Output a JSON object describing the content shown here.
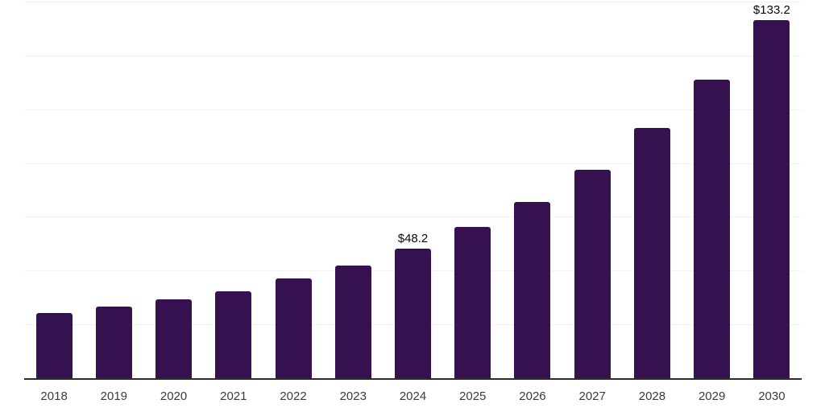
{
  "chart_data": {
    "type": "bar",
    "title": "",
    "xlabel": "",
    "ylabel": "",
    "categories": [
      "2018",
      "2019",
      "2020",
      "2021",
      "2022",
      "2023",
      "2024",
      "2025",
      "2026",
      "2027",
      "2028",
      "2029",
      "2030"
    ],
    "values": [
      24.1,
      26.5,
      29.2,
      32.2,
      37.0,
      42.0,
      48.2,
      56.3,
      65.6,
      77.5,
      93.0,
      110.9,
      133.2
    ],
    "data_labels": {
      "2024": "$48.2",
      "2030": "$133.2"
    },
    "ylim": [
      0,
      140
    ],
    "gridline_step": 20,
    "grid": true,
    "y_axis_tick_labels_visible": false,
    "legend": null,
    "colors": {
      "bar": "#35124F",
      "gridline": "#f2f2f2",
      "axis_line": "#2b2b2b",
      "tick_label": "#3b3b3b",
      "data_label": "#0a0a0a"
    }
  }
}
